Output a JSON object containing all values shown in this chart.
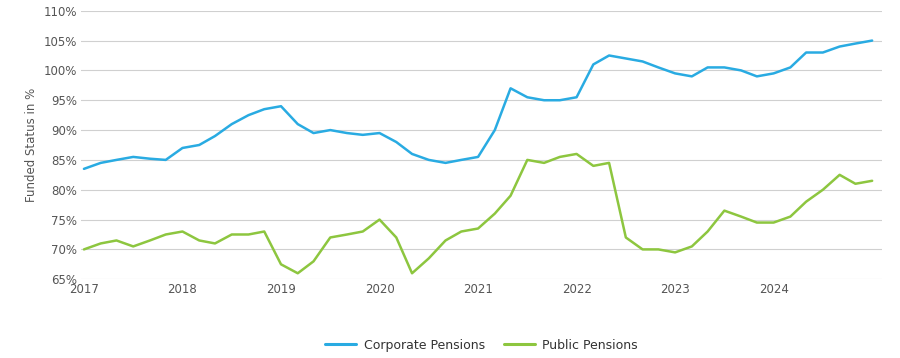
{
  "corporate": {
    "x": [
      2017.0,
      2017.17,
      2017.33,
      2017.5,
      2017.67,
      2017.83,
      2018.0,
      2018.17,
      2018.33,
      2018.5,
      2018.67,
      2018.83,
      2019.0,
      2019.17,
      2019.33,
      2019.5,
      2019.67,
      2019.83,
      2020.0,
      2020.17,
      2020.33,
      2020.5,
      2020.67,
      2020.83,
      2021.0,
      2021.17,
      2021.33,
      2021.5,
      2021.67,
      2021.83,
      2022.0,
      2022.17,
      2022.33,
      2022.5,
      2022.67,
      2022.83,
      2023.0,
      2023.17,
      2023.33,
      2023.5,
      2023.67,
      2023.83,
      2024.0,
      2024.17,
      2024.33,
      2024.5,
      2024.67,
      2024.83,
      2025.0
    ],
    "y": [
      83.5,
      84.5,
      85.0,
      85.5,
      85.2,
      85.0,
      87.0,
      87.5,
      89.0,
      91.0,
      92.5,
      93.5,
      94.0,
      91.0,
      89.5,
      90.0,
      89.5,
      89.2,
      89.5,
      88.0,
      86.0,
      85.0,
      84.5,
      85.0,
      85.5,
      90.0,
      97.0,
      95.5,
      95.0,
      95.0,
      95.5,
      101.0,
      102.5,
      102.0,
      101.5,
      100.5,
      99.5,
      99.0,
      100.5,
      100.5,
      100.0,
      99.0,
      99.5,
      100.5,
      103.0,
      103.0,
      104.0,
      104.5,
      105.0
    ]
  },
  "public": {
    "x": [
      2017.0,
      2017.17,
      2017.33,
      2017.5,
      2017.67,
      2017.83,
      2018.0,
      2018.17,
      2018.33,
      2018.5,
      2018.67,
      2018.83,
      2019.0,
      2019.17,
      2019.33,
      2019.5,
      2019.67,
      2019.83,
      2020.0,
      2020.17,
      2020.33,
      2020.5,
      2020.67,
      2020.83,
      2021.0,
      2021.17,
      2021.33,
      2021.5,
      2021.67,
      2021.83,
      2022.0,
      2022.17,
      2022.33,
      2022.5,
      2022.67,
      2022.83,
      2023.0,
      2023.17,
      2023.33,
      2023.5,
      2023.67,
      2023.83,
      2024.0,
      2024.17,
      2024.33,
      2024.5,
      2024.67,
      2024.83,
      2025.0
    ],
    "y": [
      70.0,
      71.0,
      71.5,
      70.5,
      71.5,
      72.5,
      73.0,
      71.5,
      71.0,
      72.5,
      72.5,
      73.0,
      67.5,
      66.0,
      68.0,
      72.0,
      72.5,
      73.0,
      75.0,
      72.0,
      66.0,
      68.5,
      71.5,
      73.0,
      73.5,
      76.0,
      79.0,
      85.0,
      84.5,
      85.5,
      86.0,
      84.0,
      84.5,
      72.0,
      70.0,
      70.0,
      69.5,
      70.5,
      73.0,
      76.5,
      75.5,
      74.5,
      74.5,
      75.5,
      78.0,
      80.0,
      82.5,
      81.0,
      81.5
    ]
  },
  "corporate_color": "#29abe2",
  "public_color": "#8dc63f",
  "background_color": "#ffffff",
  "grid_color": "#d0d0d0",
  "ylabel": "Funded Status in %",
  "ylim": [
    65,
    110
  ],
  "yticks": [
    65,
    70,
    75,
    80,
    85,
    90,
    95,
    100,
    105,
    110
  ],
  "xlim": [
    2016.97,
    2025.1
  ],
  "xticks": [
    2017,
    2018,
    2019,
    2020,
    2021,
    2022,
    2023,
    2024
  ],
  "legend_labels": [
    "Corporate Pensions",
    "Public Pensions"
  ],
  "line_width": 1.8
}
